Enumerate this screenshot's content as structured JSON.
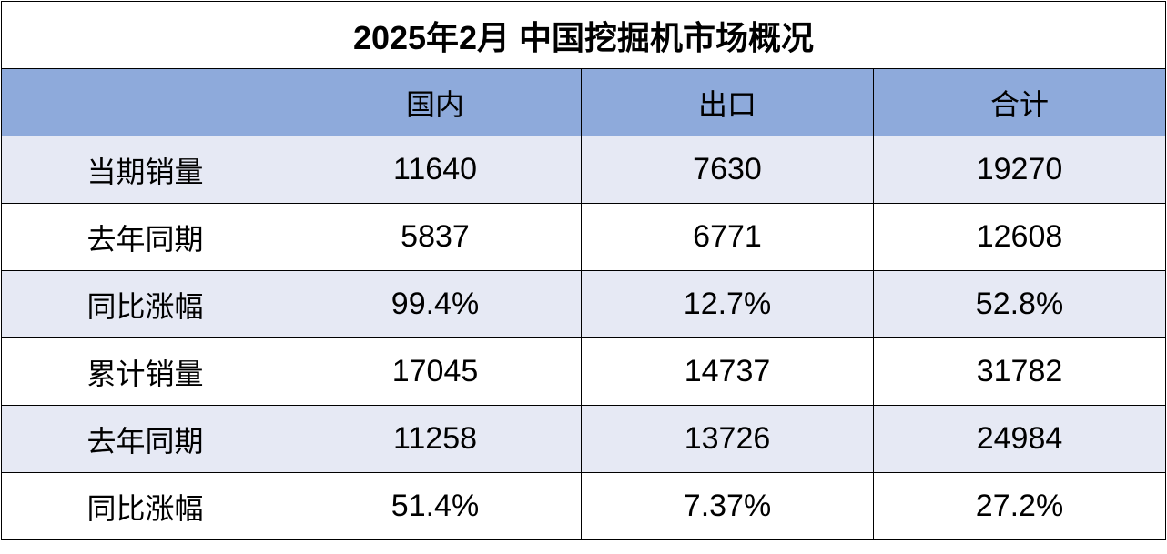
{
  "table": {
    "title": "2025年2月 中国挖掘机市场概况",
    "columns": [
      "国内",
      "出口",
      "合计"
    ],
    "rows": [
      {
        "label": "当期销量",
        "cells": [
          "11640",
          "7630",
          "19270"
        ]
      },
      {
        "label": "去年同期",
        "cells": [
          "5837",
          "6771",
          "12608"
        ]
      },
      {
        "label": "同比涨幅",
        "cells": [
          "99.4%",
          "12.7%",
          "52.8%"
        ]
      },
      {
        "label": "累计销量",
        "cells": [
          "17045",
          "14737",
          "31782"
        ]
      },
      {
        "label": "去年同期",
        "cells": [
          "11258",
          "13726",
          "24984"
        ]
      },
      {
        "label": "同比涨幅",
        "cells": [
          "51.4%",
          "7.37%",
          "27.2%"
        ]
      }
    ]
  }
}
